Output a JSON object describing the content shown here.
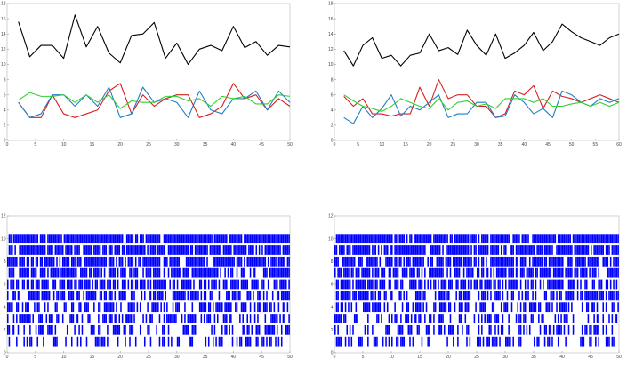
{
  "chart_data": [
    {
      "type": "line",
      "panel": "top-left",
      "x": [
        2,
        4,
        6,
        8,
        10,
        12,
        14,
        16,
        18,
        20,
        22,
        24,
        26,
        28,
        30,
        32,
        34,
        36,
        38,
        40,
        42,
        44,
        46,
        48,
        50
      ],
      "xlim": [
        0,
        50
      ],
      "ylim": [
        0,
        18
      ],
      "xticks": [
        0,
        5,
        10,
        15,
        20,
        25,
        30,
        35,
        40,
        45,
        50
      ],
      "xtick_labels": [
        "0",
        "5",
        "10",
        "15",
        "20",
        "25",
        "30",
        "35",
        "40",
        "45",
        "50"
      ],
      "yticks": [
        0,
        2,
        4,
        6,
        8,
        10,
        12,
        14,
        16,
        18
      ],
      "ytick_labels": [
        "0",
        "2",
        "4",
        "6",
        "8",
        "10",
        "12",
        "14",
        "16",
        "18"
      ],
      "series": [
        {
          "color": "#000000",
          "values": [
            15.6,
            11.0,
            12.5,
            12.5,
            10.8,
            16.5,
            12.3,
            15.0,
            11.5,
            10.2,
            13.8,
            14.0,
            15.5,
            10.8,
            12.8,
            10.0,
            12.0,
            12.5,
            11.8,
            15.0,
            12.2,
            13.0,
            11.2,
            12.5,
            12.3
          ]
        },
        {
          "color": "#d62020",
          "values": [
            5.0,
            3.0,
            3.0,
            6.0,
            3.5,
            3.0,
            3.5,
            4.0,
            6.5,
            7.5,
            3.5,
            6.0,
            4.5,
            5.5,
            6.0,
            6.0,
            3.0,
            3.5,
            4.5,
            7.5,
            5.5,
            6.0,
            4.0,
            5.5,
            4.5
          ]
        },
        {
          "color": "#1f7fc4",
          "values": [
            5.0,
            3.0,
            3.5,
            6.0,
            6.0,
            4.5,
            6.0,
            4.5,
            7.0,
            3.0,
            3.5,
            7.0,
            5.0,
            5.5,
            5.0,
            3.0,
            6.5,
            4.0,
            3.5,
            5.5,
            5.5,
            6.5,
            4.0,
            6.5,
            5.0
          ]
        },
        {
          "color": "#30d030",
          "values": [
            5.3,
            6.3,
            5.8,
            5.8,
            6.0,
            5.0,
            6.0,
            5.0,
            6.0,
            4.2,
            5.2,
            5.0,
            5.0,
            5.8,
            5.8,
            5.2,
            5.5,
            4.5,
            5.8,
            5.5,
            5.8,
            4.8,
            4.8,
            6.0,
            5.8
          ]
        }
      ]
    },
    {
      "type": "line",
      "panel": "top-right",
      "x": [
        2,
        4,
        6,
        8,
        10,
        12,
        14,
        16,
        18,
        20,
        22,
        24,
        26,
        28,
        30,
        32,
        34,
        36,
        38,
        40,
        42,
        44,
        46,
        48,
        50,
        52,
        54,
        56,
        58,
        60
      ],
      "xlim": [
        0,
        60
      ],
      "ylim": [
        0,
        18
      ],
      "xticks": [
        0,
        5,
        10,
        15,
        20,
        25,
        30,
        35,
        40,
        45,
        50,
        55,
        60
      ],
      "xtick_labels": [
        "0",
        "5",
        "10",
        "15",
        "20",
        "25",
        "30",
        "35",
        "40",
        "45",
        "50",
        "55",
        "60"
      ],
      "yticks": [
        0,
        2,
        4,
        6,
        8,
        10,
        12,
        14,
        16,
        18
      ],
      "ytick_labels": [
        "0",
        "2",
        "4",
        "6",
        "8",
        "10",
        "12",
        "14",
        "16",
        "18"
      ],
      "series": [
        {
          "color": "#000000",
          "values": [
            11.8,
            9.8,
            12.5,
            13.5,
            10.8,
            11.2,
            9.8,
            11.2,
            11.5,
            14.0,
            11.8,
            12.2,
            11.3,
            14.5,
            12.5,
            11.2,
            14.0,
            10.8,
            11.5,
            12.5,
            14.2,
            11.8,
            13.0,
            15.3,
            14.3,
            13.5,
            13.0,
            12.5,
            13.5,
            14.0
          ]
        },
        {
          "color": "#d62020",
          "values": [
            5.8,
            4.5,
            5.5,
            3.5,
            3.5,
            3.2,
            3.5,
            3.5,
            7.0,
            4.5,
            8.0,
            5.5,
            6.0,
            6.0,
            4.5,
            4.5,
            3.0,
            3.5,
            6.5,
            6.0,
            7.2,
            4.2,
            6.5,
            5.8,
            5.5,
            5.0,
            5.5,
            6.0,
            5.5,
            5.0
          ]
        },
        {
          "color": "#1f7fc4",
          "values": [
            3.0,
            2.2,
            4.5,
            3.0,
            4.2,
            6.0,
            3.2,
            4.5,
            4.0,
            5.0,
            6.0,
            3.0,
            3.5,
            3.5,
            5.0,
            5.0,
            3.0,
            3.2,
            6.0,
            5.0,
            3.5,
            4.2,
            3.0,
            6.5,
            6.0,
            5.0,
            4.5,
            5.5,
            5.0,
            5.5
          ]
        },
        {
          "color": "#30d030",
          "values": [
            6.0,
            5.2,
            4.5,
            4.2,
            3.8,
            4.5,
            5.5,
            5.0,
            4.5,
            4.2,
            5.5,
            4.0,
            5.0,
            5.2,
            4.5,
            4.8,
            4.2,
            5.5,
            5.5,
            5.5,
            5.0,
            5.5,
            4.5,
            4.5,
            4.8,
            5.0,
            4.5,
            5.0,
            4.5,
            5.0
          ]
        }
      ]
    },
    {
      "type": "event-raster",
      "panel": "bottom-left",
      "xlim": [
        0,
        50
      ],
      "ylim": [
        0,
        12
      ],
      "rows": [
        1,
        2,
        3,
        4,
        5,
        6,
        7,
        8,
        9,
        10
      ],
      "bar_color": "#0000ff",
      "xticks": [
        0,
        5,
        10,
        15,
        20,
        25,
        30,
        35,
        40,
        45,
        50
      ],
      "xtick_labels": [
        "0",
        "5",
        "10",
        "15",
        "20",
        "25",
        "30",
        "35",
        "40",
        "45",
        "50"
      ],
      "yticks": [
        0,
        2,
        4,
        6,
        8,
        10,
        12
      ],
      "ytick_labels": [
        "0",
        "2",
        "4",
        "6",
        "8",
        "10",
        "12"
      ]
    },
    {
      "type": "event-raster",
      "panel": "bottom-right",
      "xlim": [
        0,
        50
      ],
      "ylim": [
        0,
        12
      ],
      "rows": [
        1,
        2,
        3,
        4,
        5,
        6,
        7,
        8,
        9,
        10
      ],
      "bar_color": "#0000ff",
      "xticks": [
        0,
        5,
        10,
        15,
        20,
        25,
        30,
        35,
        40,
        45,
        50
      ],
      "xtick_labels": [
        "0",
        "5",
        "10",
        "15",
        "20",
        "25",
        "30",
        "35",
        "40",
        "45",
        "50"
      ],
      "yticks": [
        0,
        2,
        4,
        6,
        8,
        10,
        12
      ],
      "ytick_labels": [
        "0",
        "2",
        "4",
        "6",
        "8",
        "10",
        "12"
      ]
    }
  ]
}
